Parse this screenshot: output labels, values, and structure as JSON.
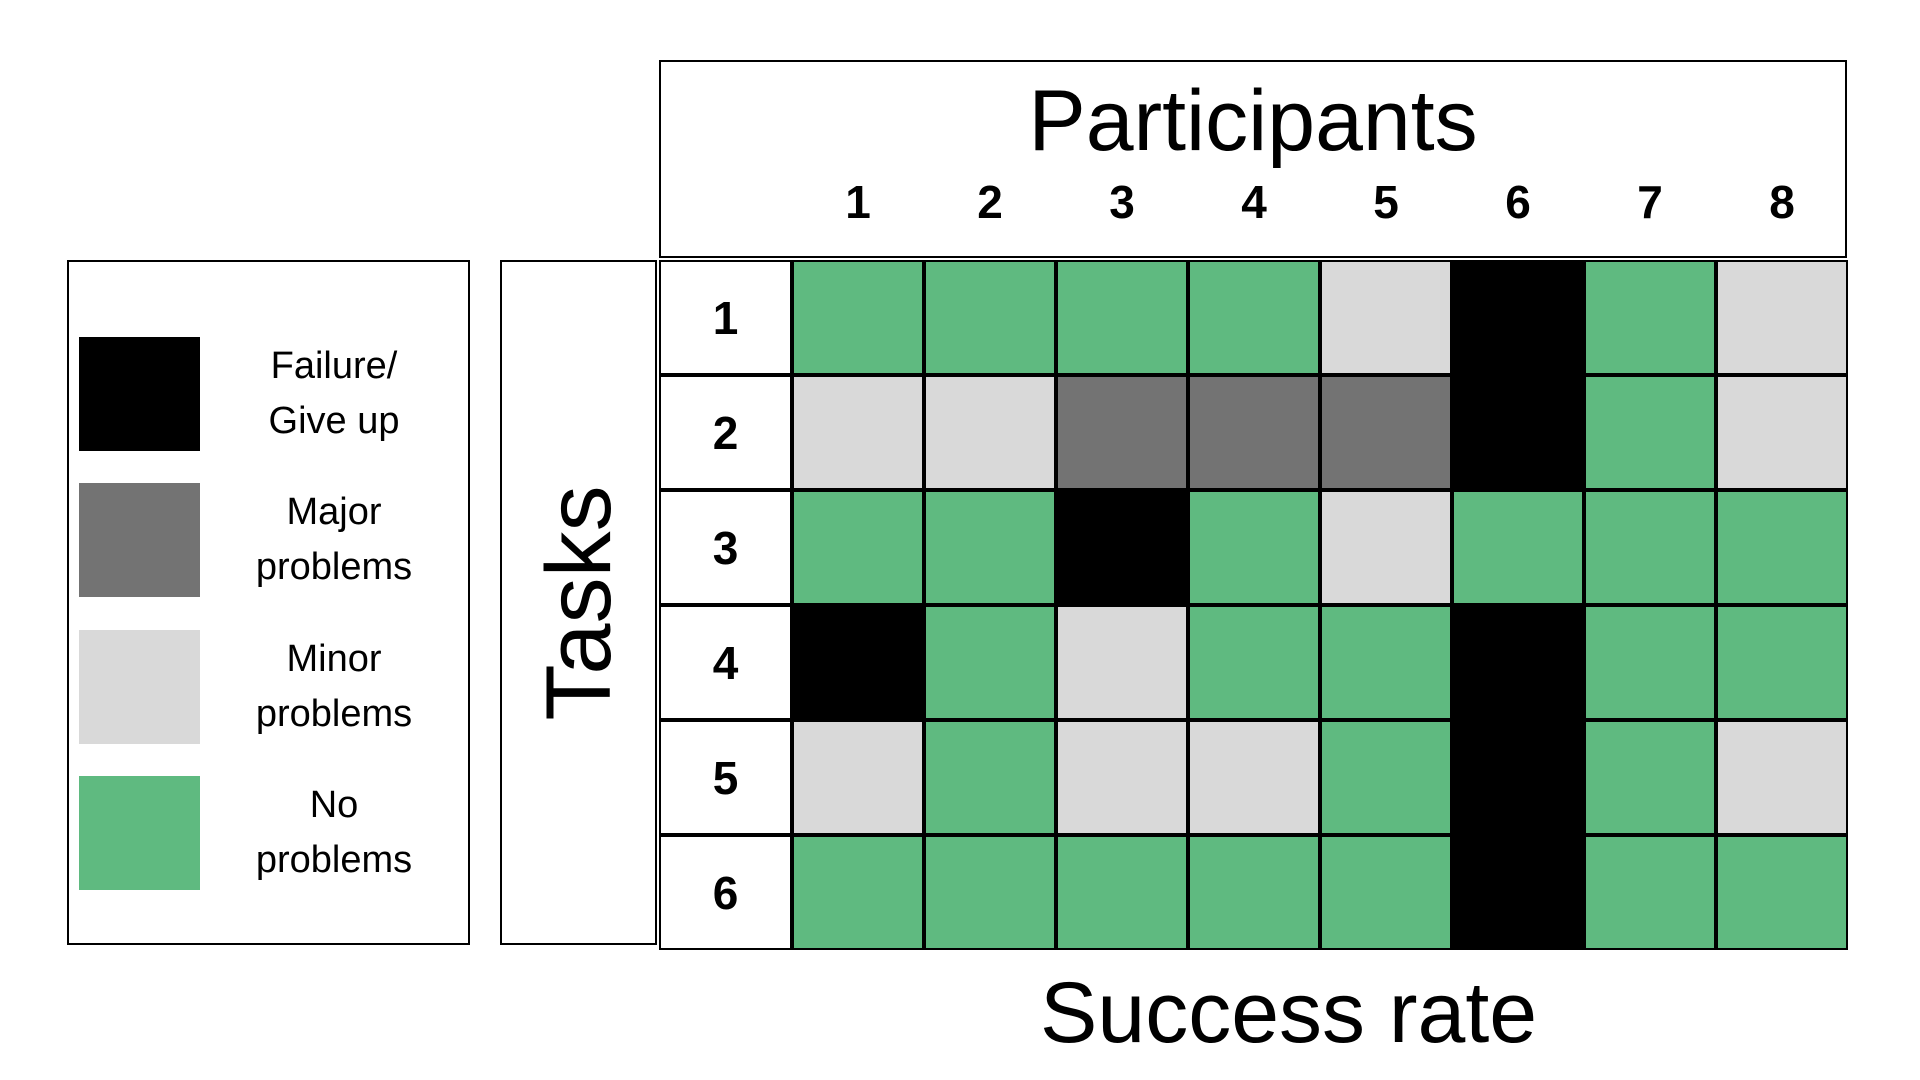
{
  "legend": {
    "items": [
      {
        "key": "failure",
        "label": "Failure/\nGive up",
        "color": "#000000"
      },
      {
        "key": "major",
        "label": "Major\nproblems",
        "color": "#737373"
      },
      {
        "key": "minor",
        "label": "Minor\nproblems",
        "color": "#d9d9d9"
      },
      {
        "key": "none",
        "label": "No\nproblems",
        "color": "#5fba80"
      }
    ]
  },
  "chart_data": {
    "type": "heatmap",
    "title": "Participants",
    "xlabel": "Success rate",
    "ylabel": "Tasks",
    "x_categories": [
      "1",
      "2",
      "3",
      "4",
      "5",
      "6",
      "7",
      "8"
    ],
    "y_categories": [
      "1",
      "2",
      "3",
      "4",
      "5",
      "6"
    ],
    "values": [
      [
        "none",
        "none",
        "none",
        "none",
        "minor",
        "failure",
        "none",
        "minor"
      ],
      [
        "minor",
        "minor",
        "major",
        "major",
        "major",
        "failure",
        "none",
        "minor"
      ],
      [
        "none",
        "none",
        "failure",
        "none",
        "minor",
        "none",
        "none",
        "none"
      ],
      [
        "failure",
        "none",
        "minor",
        "none",
        "none",
        "failure",
        "none",
        "none"
      ],
      [
        "minor",
        "none",
        "minor",
        "minor",
        "none",
        "failure",
        "none",
        "minor"
      ],
      [
        "none",
        "none",
        "none",
        "none",
        "none",
        "failure",
        "none",
        "none"
      ]
    ],
    "colors": {
      "failure": "#000000",
      "major": "#737373",
      "minor": "#d9d9d9",
      "none": "#5fba80"
    }
  }
}
